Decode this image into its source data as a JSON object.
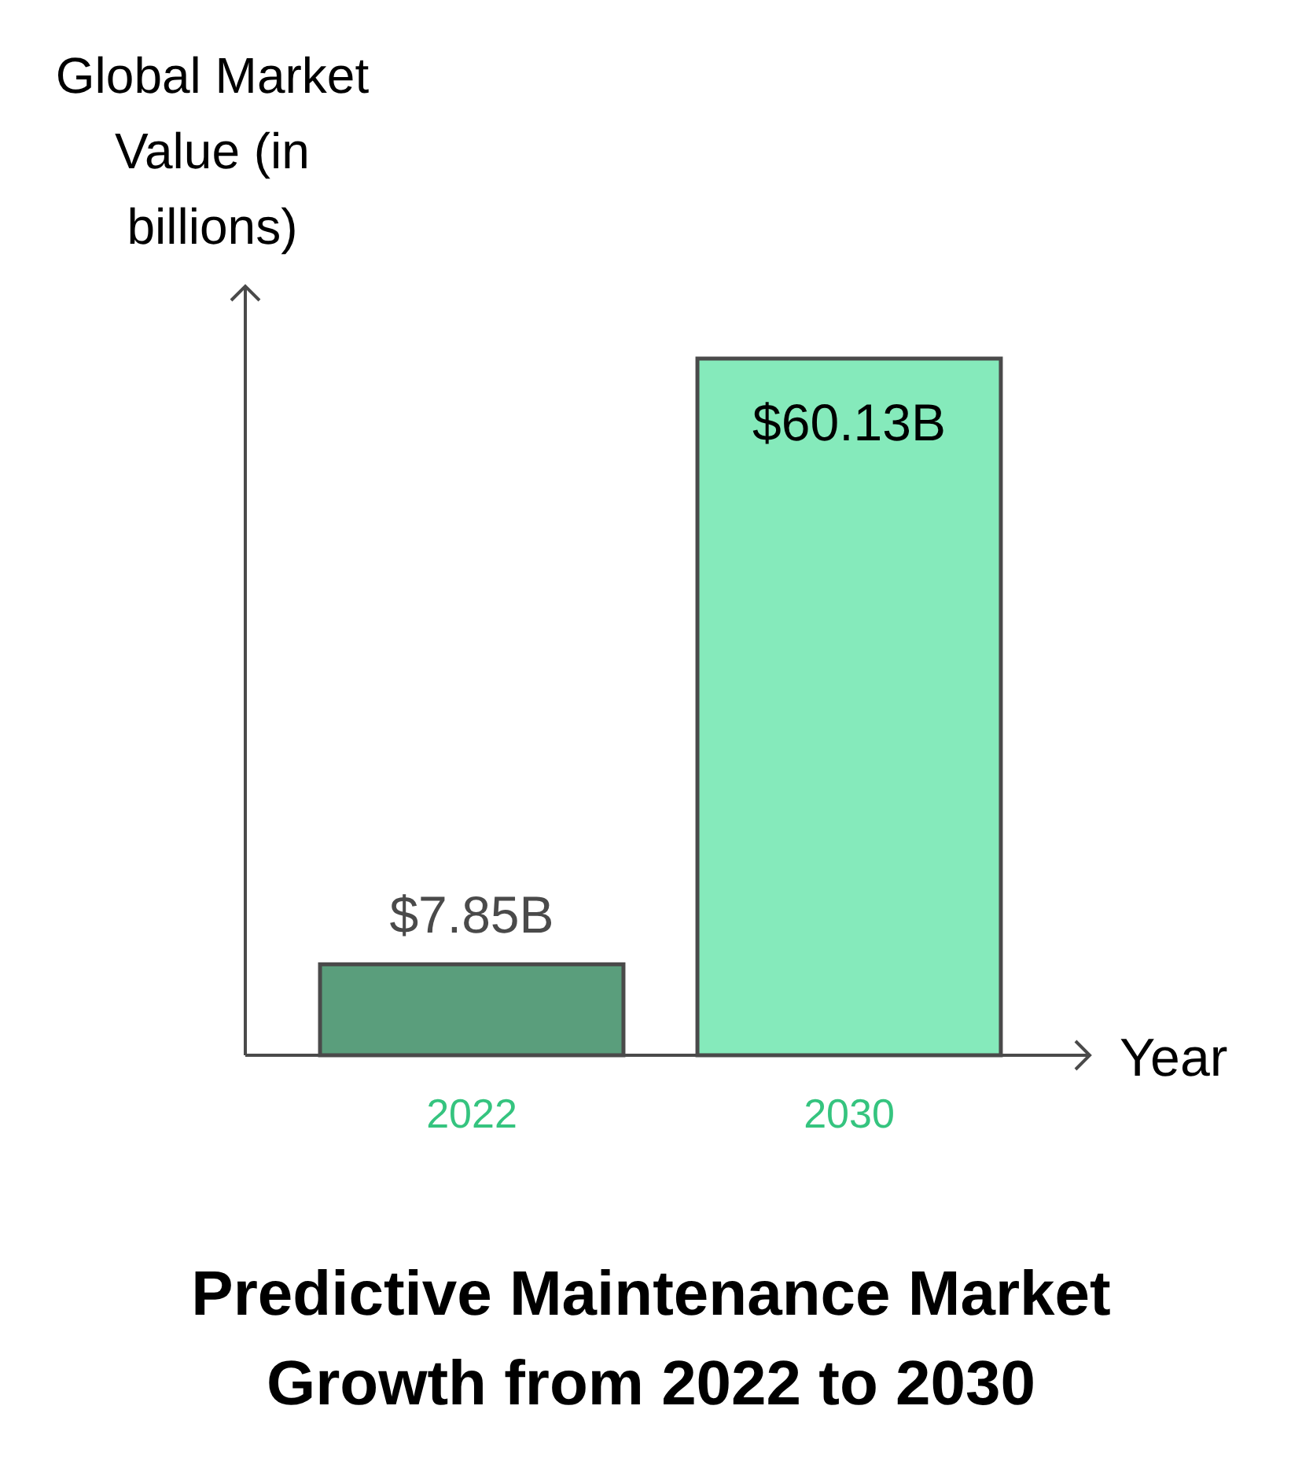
{
  "chart_data": {
    "type": "bar",
    "title": "Predictive Maintenance Market Growth from 2022 to 2030",
    "xlabel": "Year",
    "ylabel": "Global Market Value (in billions)",
    "categories": [
      "2022",
      "2030"
    ],
    "values": [
      7.85,
      60.13
    ],
    "colors": [
      "#5a9e7c",
      "#85eabb"
    ],
    "value_labels": [
      "$7.85B",
      "$60.13B"
    ]
  }
}
